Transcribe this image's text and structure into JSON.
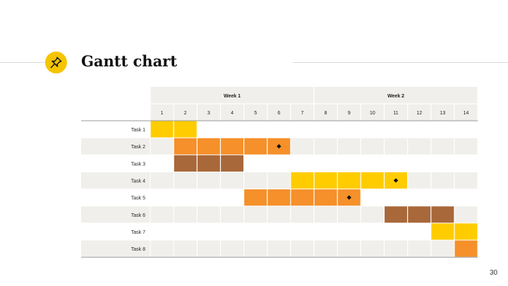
{
  "slide": {
    "title": "Gantt chart",
    "page_number": "30",
    "icon": "pushpin-icon",
    "colors": {
      "accent_yellow": "#ffcc00",
      "accent_orange": "#f5902a",
      "accent_brown": "#a8683a",
      "row_stripe": "#f0efeb"
    }
  },
  "chart_data": {
    "type": "gantt",
    "weeks": [
      {
        "label": "Week 1",
        "days": [
          1,
          7
        ]
      },
      {
        "label": "Week 2",
        "days": [
          8,
          14
        ]
      }
    ],
    "days": [
      "1",
      "2",
      "3",
      "4",
      "5",
      "6",
      "7",
      "8",
      "9",
      "10",
      "11",
      "12",
      "13",
      "14"
    ],
    "tasks": [
      {
        "name": "Task 1",
        "start": 1,
        "end": 2,
        "color": "#ffcc00",
        "milestone": null
      },
      {
        "name": "Task 2",
        "start": 2,
        "end": 6,
        "color": "#f5902a",
        "milestone": 6
      },
      {
        "name": "Task 3",
        "start": 2,
        "end": 4,
        "color": "#a8683a",
        "milestone": null
      },
      {
        "name": "Task 4",
        "start": 7,
        "end": 11,
        "color": "#ffcc00",
        "milestone": 11
      },
      {
        "name": "Task 5",
        "start": 5,
        "end": 9,
        "color": "#f5902a",
        "milestone": 9
      },
      {
        "name": "Task 6",
        "start": 11,
        "end": 13,
        "color": "#a8683a",
        "milestone": null
      },
      {
        "name": "Task 7",
        "start": 13,
        "end": 14,
        "color": "#ffcc00",
        "milestone": null
      },
      {
        "name": "Task 8",
        "start": 14,
        "end": 14,
        "color": "#f5902a",
        "milestone": null
      }
    ]
  }
}
